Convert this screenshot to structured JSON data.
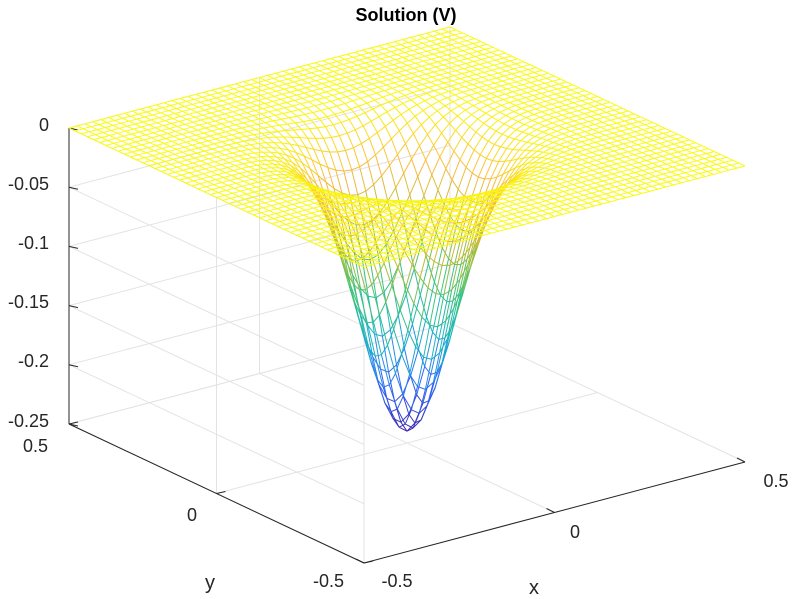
{
  "chart_data": {
    "type": "surface",
    "title": "Solution (V)",
    "xlabel": "x",
    "ylabel": "y",
    "zlabel": "",
    "xlim": [
      -0.5,
      0.5
    ],
    "ylim": [
      -0.5,
      0.5
    ],
    "zlim": [
      -0.25,
      0
    ],
    "x_ticks": [
      "-0.5",
      "0",
      "0.5"
    ],
    "y_ticks": [
      "-0.5",
      "0",
      "0.5"
    ],
    "z_ticks": [
      "0",
      "-0.05",
      "-0.1",
      "-0.15",
      "-0.2",
      "-0.25"
    ],
    "z_tick_values": [
      0,
      -0.05,
      -0.1,
      -0.15,
      -0.2,
      -0.25
    ],
    "grid": true,
    "colormap": "parula",
    "colormap_stops": [
      "#3e26a8",
      "#2f6afb",
      "#17b4c8",
      "#3ec47a",
      "#b9bc33",
      "#fbba40",
      "#f9fb0e"
    ],
    "mesh_resolution": 49,
    "surface_min": -0.24,
    "surface_shape": "bowl centered at (0,0), zero at the boundary"
  }
}
